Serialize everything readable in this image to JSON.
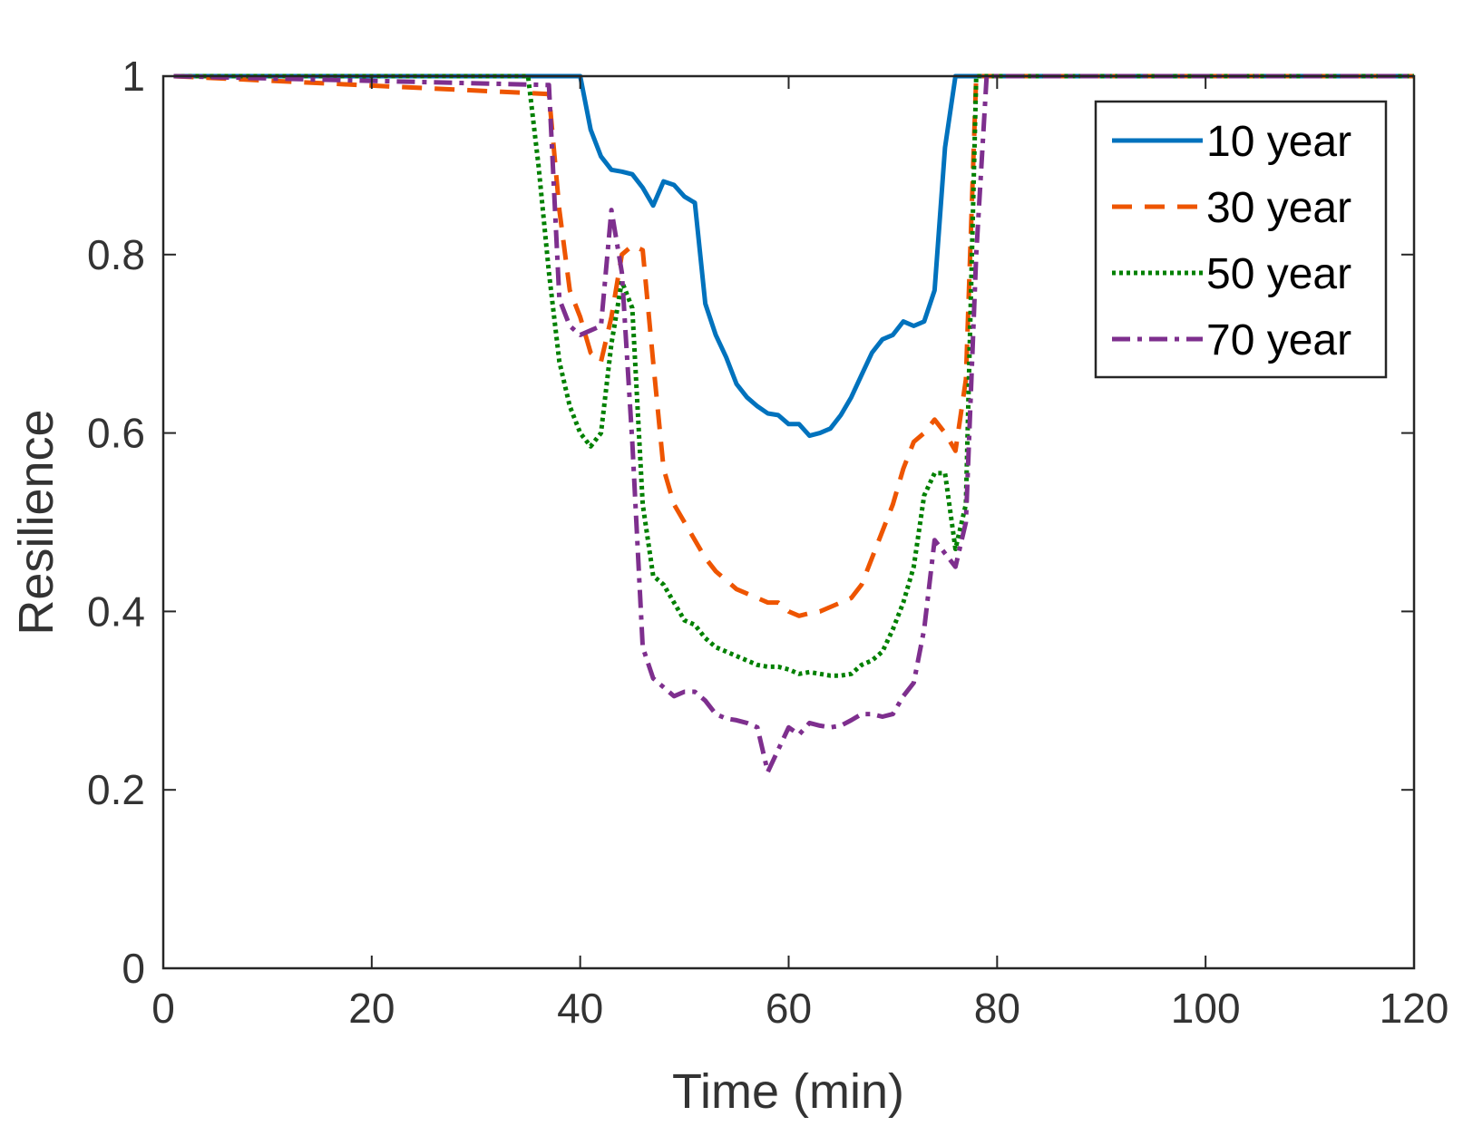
{
  "chart_data": {
    "type": "line",
    "title": "",
    "xlabel": "Time (min)",
    "ylabel": "Resilience",
    "xlim": [
      0,
      120
    ],
    "ylim": [
      0,
      1
    ],
    "xticks": [
      0,
      20,
      40,
      60,
      80,
      100,
      120
    ],
    "xtick_labels": [
      "0",
      "20",
      "40",
      "60",
      "80",
      "100",
      "120"
    ],
    "yticks": [
      0,
      0.2,
      0.4,
      0.6,
      0.8,
      1
    ],
    "ytick_labels": [
      "0",
      "0.2",
      "0.4",
      "0.6",
      "0.8",
      "1"
    ],
    "grid": false,
    "legend_position": "top-right",
    "series": [
      {
        "name": "10 year",
        "color": "#0072BD",
        "style": "solid",
        "x": [
          1,
          39,
          40,
          41,
          42,
          43,
          44,
          45,
          46,
          47,
          48,
          49,
          50,
          51,
          52,
          53,
          54,
          55,
          56,
          57,
          58,
          59,
          60,
          61,
          62,
          63,
          64,
          65,
          66,
          67,
          68,
          69,
          70,
          71,
          72,
          73,
          74,
          75,
          76,
          120
        ],
        "y": [
          1,
          1,
          1,
          0.94,
          0.91,
          0.895,
          0.893,
          0.89,
          0.875,
          0.855,
          0.882,
          0.878,
          0.865,
          0.858,
          0.745,
          0.71,
          0.685,
          0.655,
          0.64,
          0.63,
          0.622,
          0.62,
          0.61,
          0.61,
          0.597,
          0.6,
          0.605,
          0.62,
          0.64,
          0.665,
          0.69,
          0.705,
          0.71,
          0.725,
          0.72,
          0.725,
          0.76,
          0.92,
          1,
          1
        ]
      },
      {
        "name": "30 year",
        "color": "#EE5500",
        "style": "dashed",
        "x": [
          1,
          37,
          38,
          39,
          40,
          41,
          42,
          43,
          44,
          45,
          46,
          47,
          48,
          49,
          50,
          51,
          52,
          53,
          54,
          55,
          56,
          57,
          58,
          59,
          60,
          61,
          62,
          63,
          64,
          65,
          66,
          67,
          68,
          69,
          70,
          71,
          72,
          73,
          74,
          75,
          76,
          77,
          78,
          120
        ],
        "y": [
          1,
          0.98,
          0.85,
          0.76,
          0.73,
          0.69,
          0.68,
          0.73,
          0.8,
          0.81,
          0.805,
          0.68,
          0.56,
          0.52,
          0.5,
          0.48,
          0.46,
          0.445,
          0.435,
          0.425,
          0.42,
          0.415,
          0.41,
          0.41,
          0.4,
          0.395,
          0.398,
          0.4,
          0.405,
          0.41,
          0.415,
          0.43,
          0.46,
          0.49,
          0.52,
          0.56,
          0.59,
          0.6,
          0.615,
          0.6,
          0.58,
          0.66,
          1,
          1
        ]
      },
      {
        "name": "50 year",
        "color": "#008000",
        "style": "dotted",
        "x": [
          1,
          35,
          36,
          37,
          38,
          39,
          40,
          41,
          42,
          43,
          44,
          45,
          46,
          47,
          48,
          49,
          50,
          51,
          52,
          53,
          54,
          55,
          56,
          57,
          58,
          59,
          60,
          61,
          62,
          63,
          64,
          65,
          66,
          67,
          68,
          69,
          70,
          71,
          72,
          73,
          74,
          75,
          76,
          77,
          78,
          120
        ],
        "y": [
          1,
          1,
          0.9,
          0.78,
          0.68,
          0.63,
          0.6,
          0.585,
          0.6,
          0.7,
          0.77,
          0.74,
          0.52,
          0.44,
          0.43,
          0.41,
          0.39,
          0.385,
          0.37,
          0.36,
          0.355,
          0.35,
          0.345,
          0.34,
          0.338,
          0.338,
          0.335,
          0.33,
          0.332,
          0.33,
          0.328,
          0.328,
          0.33,
          0.34,
          0.345,
          0.355,
          0.38,
          0.41,
          0.45,
          0.53,
          0.555,
          0.555,
          0.47,
          0.52,
          1,
          1
        ]
      },
      {
        "name": "70 year",
        "color": "#7E2F8E",
        "style": "dashdot",
        "x": [
          1,
          37,
          38,
          39,
          40,
          41,
          42,
          43,
          44,
          45,
          46,
          47,
          48,
          49,
          50,
          51,
          52,
          53,
          54,
          55,
          56,
          57,
          58,
          59,
          60,
          61,
          62,
          63,
          64,
          65,
          66,
          67,
          68,
          69,
          70,
          71,
          72,
          73,
          74,
          75,
          76,
          77,
          78,
          79,
          120
        ],
        "y": [
          1,
          0.99,
          0.75,
          0.72,
          0.71,
          0.715,
          0.72,
          0.85,
          0.78,
          0.59,
          0.36,
          0.325,
          0.315,
          0.305,
          0.31,
          0.31,
          0.3,
          0.285,
          0.28,
          0.278,
          0.275,
          0.27,
          0.22,
          0.245,
          0.27,
          0.262,
          0.275,
          0.272,
          0.27,
          0.272,
          0.278,
          0.285,
          0.285,
          0.282,
          0.285,
          0.305,
          0.32,
          0.38,
          0.48,
          0.465,
          0.45,
          0.5,
          0.8,
          1,
          1
        ]
      }
    ]
  }
}
